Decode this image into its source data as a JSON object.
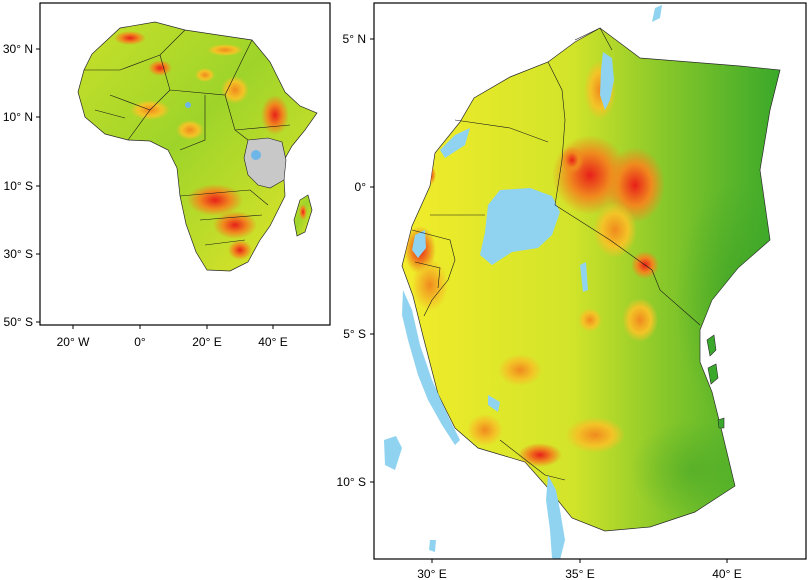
{
  "left_map": {
    "lat_labels": [
      "30° N",
      "10° N",
      "10° S",
      "30° S",
      "50° S"
    ],
    "lon_labels": [
      "20° W",
      "0°",
      "20° E",
      "40° E"
    ]
  },
  "right_map": {
    "lat_labels": [
      "5° N",
      "0°",
      "5° S",
      "10° S"
    ],
    "lon_labels": [
      "30° E",
      "35° E",
      "40° E"
    ]
  },
  "colors": {
    "low": "#3aa82a",
    "mid_low": "#9ed42a",
    "mid": "#f2ec2a",
    "high": "#f08a1e",
    "very_high": "#e8201a",
    "water": "#8fd3f0",
    "study_area": "#c8c8c8"
  }
}
